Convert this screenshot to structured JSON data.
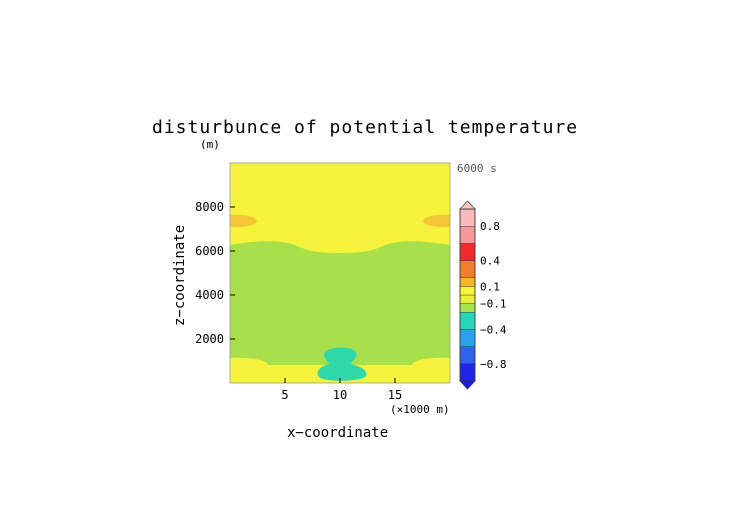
{
  "chart_data": {
    "type": "heatmap",
    "title": "disturbunce of potential temperature",
    "xlabel": "x−coordinate",
    "ylabel": "z−coordinate",
    "y_unit": "(m)",
    "x_unit": "(×1000 m)",
    "time_label": "6000 s",
    "x_ticks": [
      "5",
      "10",
      "15"
    ],
    "y_ticks": [
      "2000",
      "4000",
      "6000",
      "8000"
    ],
    "xlim": [
      0,
      20
    ],
    "ylim": [
      0,
      10000
    ],
    "x_tick_values": [
      5,
      10,
      15
    ],
    "y_tick_values": [
      2000,
      4000,
      6000,
      8000
    ],
    "colorbar": {
      "labels": [
        "0.8",
        "0.4",
        "0.1",
        "−0.1",
        "−0.4",
        "−0.8"
      ],
      "levels": [
        {
          "from": -1.0,
          "to": -0.8,
          "color": "#1f24e6"
        },
        {
          "from": -0.8,
          "to": -0.6,
          "color": "#2d63f0"
        },
        {
          "from": -0.6,
          "to": -0.4,
          "color": "#29a3ee"
        },
        {
          "from": -0.4,
          "to": -0.2,
          "color": "#27d6b8"
        },
        {
          "from": -0.2,
          "to": -0.1,
          "color": "#a6e24a"
        },
        {
          "from": -0.1,
          "to": 0.0,
          "color": "#e8f03c"
        },
        {
          "from": 0.0,
          "to": 0.1,
          "color": "#f8f43a"
        },
        {
          "from": 0.1,
          "to": 0.2,
          "color": "#f4b530"
        },
        {
          "from": 0.2,
          "to": 0.4,
          "color": "#f27e2e"
        },
        {
          "from": 0.4,
          "to": 0.6,
          "color": "#f02b2b"
        },
        {
          "from": 0.6,
          "to": 0.8,
          "color": "#f59898"
        },
        {
          "from": 0.8,
          "to": 1.0,
          "color": "#f8baba"
        }
      ],
      "under_color": "#1c1ce0",
      "over_color": "#f8c6c6"
    },
    "regions": [
      {
        "value": "-0.1 to 0.0",
        "color": "#f4f23a",
        "description": "background upper layer"
      },
      {
        "value": "-0.2 to -0.1",
        "color": "#a6e24a",
        "description": "middle layer"
      },
      {
        "value": "0.1 to 0.2",
        "color": "#f4c534",
        "description": "upper-edge warm lobes"
      },
      {
        "value": "-0.4 to -0.2",
        "color": "#2fd8a8",
        "description": "central low-level cold bubble"
      }
    ]
  }
}
